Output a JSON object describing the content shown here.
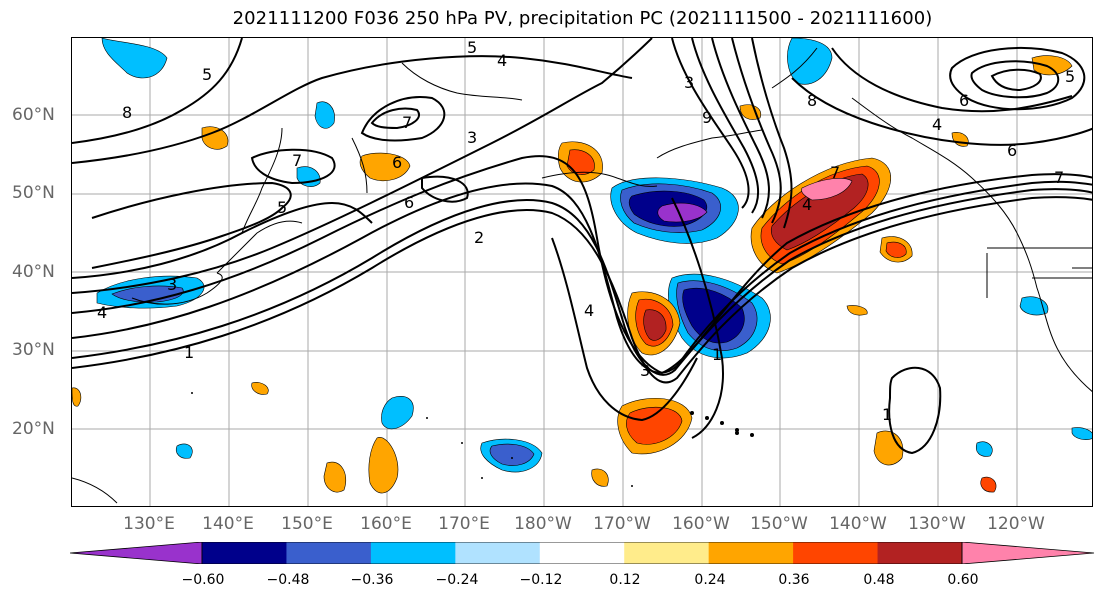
{
  "title": "2021111200 F036 250 hPa PV, precipitation PC (2021111500 - 2021111600)",
  "map": {
    "lat_labels": [
      "60°N",
      "50°N",
      "40°N",
      "30°N",
      "20°N"
    ],
    "lon_labels": [
      "130°E",
      "140°E",
      "150°E",
      "160°E",
      "170°E",
      "180°W",
      "170°W",
      "160°W",
      "150°W",
      "140°W",
      "130°W",
      "120°W"
    ],
    "contour_labels": [
      "5",
      "4",
      "5",
      "8",
      "7",
      "5",
      "7",
      "6",
      "3",
      "6",
      "2",
      "3",
      "4",
      "1",
      "3",
      "4",
      "1",
      "1",
      "5",
      "4",
      "6",
      "7",
      "6",
      "7",
      "4",
      "8",
      "3",
      "9"
    ]
  },
  "colorbar": {
    "colors": [
      "#9932cc",
      "#00008b",
      "#3a5fcd",
      "#00bfff",
      "#b0e2ff",
      "#ffffff",
      "#ffec8b",
      "#ffa500",
      "#ff4500",
      "#b22222",
      "#ff82ab"
    ],
    "tick_labels": [
      "−0.60",
      "−0.48",
      "−0.36",
      "−0.24",
      "−0.12",
      "0.12",
      "0.24",
      "0.36",
      "0.48",
      "0.60"
    ]
  }
}
